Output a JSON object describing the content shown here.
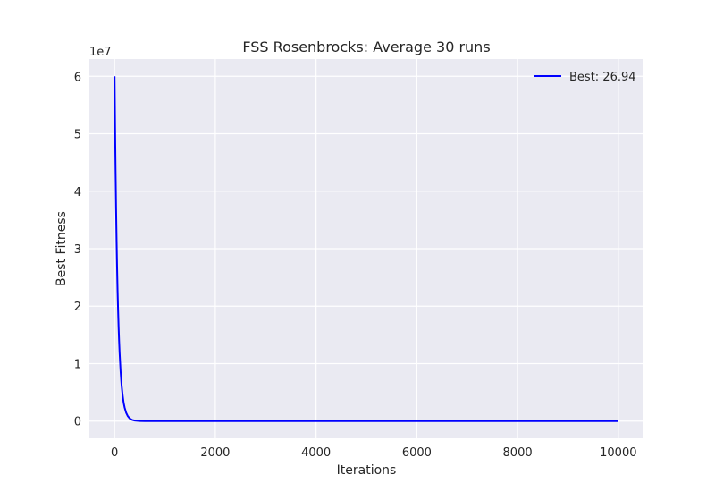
{
  "chart_data": {
    "type": "line",
    "title": "FSS Rosenbrocks: Average 30 runs",
    "xlabel": "Iterations",
    "ylabel": "Best Fitness",
    "y_offset_label": "1e7",
    "xlim": [
      -500,
      10500
    ],
    "ylim": [
      -3000000,
      63000000
    ],
    "x_ticks": [
      0,
      2000,
      4000,
      6000,
      8000,
      10000
    ],
    "x_tick_labels": [
      "0",
      "2000",
      "4000",
      "6000",
      "8000",
      "10000"
    ],
    "y_ticks": [
      0,
      10000000,
      20000000,
      30000000,
      40000000,
      50000000,
      60000000
    ],
    "y_tick_labels": [
      "0",
      "1",
      "2",
      "3",
      "4",
      "5",
      "6"
    ],
    "grid": true,
    "legend_position": "top-right",
    "series": [
      {
        "name": "Best: 26.94",
        "color": "#0000ff",
        "x": [
          0,
          10,
          20,
          30,
          40,
          50,
          60,
          70,
          80,
          90,
          100,
          120,
          140,
          160,
          180,
          200,
          230,
          260,
          300,
          350,
          400,
          500,
          600,
          800,
          1000,
          2000,
          4000,
          6000,
          8000,
          10000
        ],
        "y": [
          60000000,
          51000000,
          43400000,
          36900000,
          31400000,
          26700000,
          22700000,
          19300000,
          16400000,
          14000000,
          11900000,
          8600000,
          6200000,
          4500000,
          3200000,
          2350000,
          1450000,
          900000,
          460000,
          200000,
          90000,
          20000,
          5000,
          500,
          100,
          30,
          27,
          27,
          27,
          26.94
        ]
      }
    ]
  }
}
